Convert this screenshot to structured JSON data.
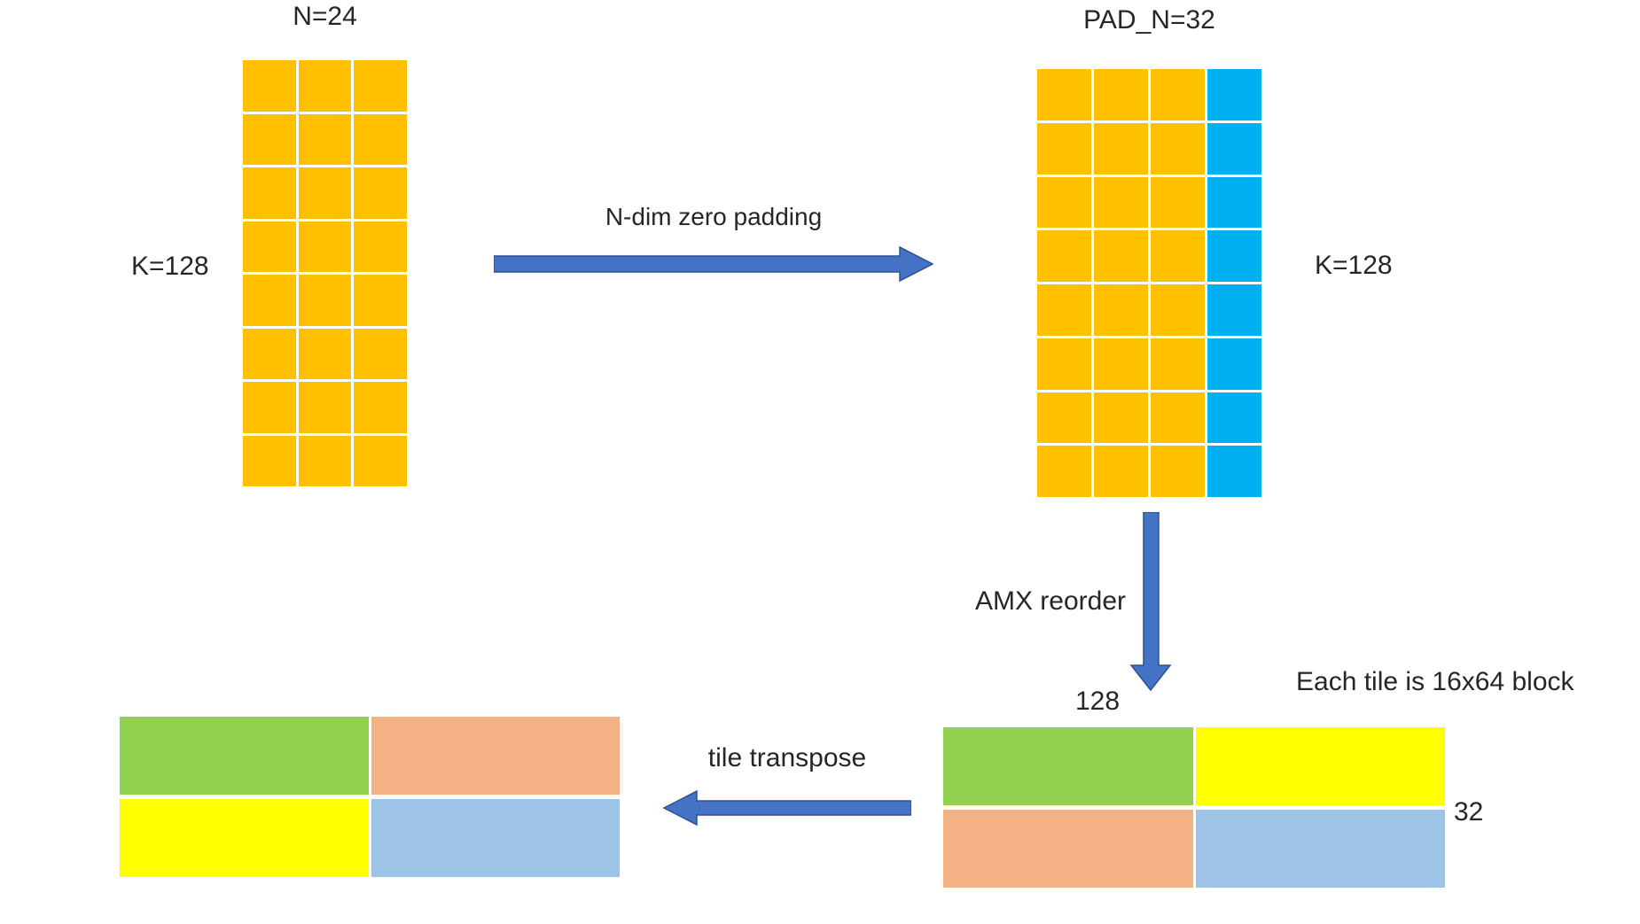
{
  "labels": {
    "matrix_a_title": "N=24",
    "matrix_a_side": "K=128",
    "matrix_b_title": "PAD_N=32",
    "matrix_b_side": "K=128",
    "pad_arrow": "N-dim zero padding",
    "reorder_arrow": "AMX reorder",
    "transpose_arrow": "tile transpose",
    "reordered_width": "128",
    "reordered_height": "32",
    "tile_note": "Each tile is 16x64 block"
  },
  "colors": {
    "amber": "#FFC000",
    "cyan": "#00B0F0",
    "green": "#92D050",
    "yellow": "#FFFF00",
    "peach": "#F4B183",
    "lightblue": "#9DC3E6",
    "arrow": "#4472C4",
    "arrow_border": "#2F528F"
  },
  "grids": {
    "matrix_a": {
      "rows": 8,
      "cols": 3,
      "row_pattern": [
        "amber",
        "amber",
        "amber"
      ]
    },
    "matrix_b": {
      "rows": 8,
      "cols": 4,
      "row_pattern": [
        "amber",
        "amber",
        "amber",
        "cyan"
      ]
    },
    "tiles_transposed": {
      "rows": 2,
      "cols": 2,
      "cells": [
        [
          "green",
          "peach"
        ],
        [
          "yellow",
          "lightblue"
        ]
      ]
    },
    "tiles_reordered": {
      "rows": 2,
      "cols": 2,
      "cells": [
        [
          "green",
          "yellow"
        ],
        [
          "peach",
          "lightblue"
        ]
      ]
    }
  }
}
